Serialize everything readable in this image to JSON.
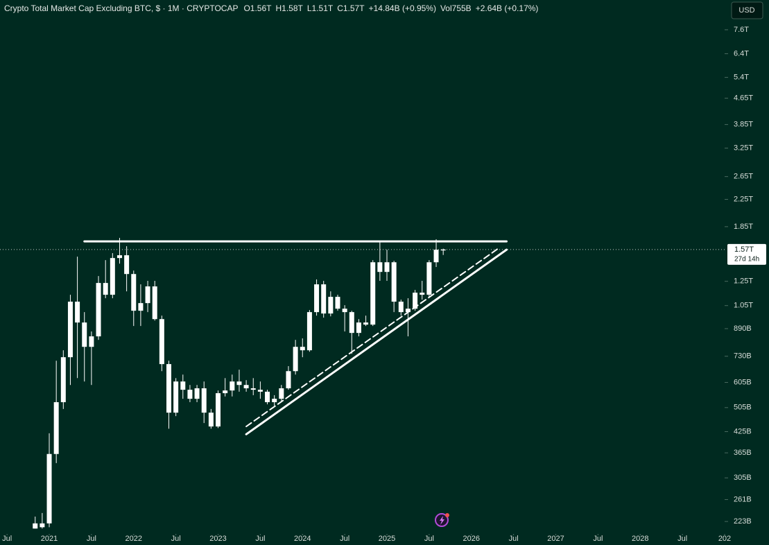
{
  "chart_data": {
    "type": "candlestick",
    "title": "Crypto Total Market Cap Excluding BTC, $ · 1M · CRYPTOCAP",
    "legend_values": [
      "O1.56T",
      "H1.58T",
      "L1.51T",
      "C1.57T",
      "+14.84B (+0.95%)",
      "Vol755B",
      "+2.64B (+0.17%)"
    ],
    "currency": "USD",
    "color": "#ffffff",
    "log": true,
    "x": [
      "2020-11",
      "2020-12",
      "2021-01",
      "2021-02",
      "2021-03",
      "2021-04",
      "2021-05",
      "2021-06",
      "2021-07",
      "2021-08",
      "2021-09",
      "2021-10",
      "2021-11",
      "2021-12",
      "2022-01",
      "2022-02",
      "2022-03",
      "2022-04",
      "2022-05",
      "2022-06",
      "2022-07",
      "2022-08",
      "2022-09",
      "2022-10",
      "2022-11",
      "2022-12",
      "2023-01",
      "2023-02",
      "2023-03",
      "2023-04",
      "2023-05",
      "2023-06",
      "2023-07",
      "2023-08",
      "2023-09",
      "2023-10",
      "2023-11",
      "2023-12",
      "2024-01",
      "2024-02",
      "2024-03",
      "2024-04",
      "2024-05",
      "2024-06",
      "2024-07",
      "2024-08",
      "2024-09",
      "2024-10",
      "2024-11",
      "2024-12",
      "2025-01",
      "2025-02",
      "2025-03",
      "2025-04",
      "2025-05",
      "2025-06",
      "2025-07",
      "2025-08",
      "2025-09"
    ],
    "open": [
      212000000000.0,
      214000000000.0,
      220000000000.0,
      362000000000.0,
      525000000000.0,
      725000000000.0,
      1080000000000.0,
      930000000000.0,
      781000000000.0,
      842000000000.0,
      1235000000000.0,
      1135000000000.0,
      1477000000000.0,
      1507000000000.0,
      1317000000000.0,
      1012000000000.0,
      1069000000000.0,
      1205000000000.0,
      953000000000.0,
      690000000000.0,
      487000000000.0,
      609000000000.0,
      574000000000.0,
      538000000000.0,
      580000000000.0,
      487000000000.0,
      441000000000.0,
      560000000000.0,
      571000000000.0,
      609000000000.0,
      594000000000.0,
      580000000000.0,
      574000000000.0,
      566000000000.0,
      525000000000.0,
      538000000000.0,
      580000000000.0,
      656000000000.0,
      781000000000.0,
      762000000000.0,
      1002000000000.0,
      1223000000000.0,
      992000000000.0,
      1118000000000.0,
      1027000000000.0,
      1002000000000.0,
      863000000000.0,
      930000000000.0,
      916000000000.0,
      1433000000000.0,
      1337000000000.0,
      1433000000000.0,
      1080000000000.0,
      1002000000000.0,
      1027000000000.0,
      1152000000000.0,
      1135000000000.0,
      1433000000000.0,
      1560000000000.0
    ],
    "high": [
      231000000000.0,
      237000000000.0,
      420000000000.0,
      707000000000.0,
      762000000000.0,
      1135000000000.0,
      1492000000000.0,
      1002000000000.0,
      872000000000.0,
      1298000000000.0,
      1455000000000.0,
      1530000000000.0,
      1707000000000.0,
      1608000000000.0,
      1350000000000.0,
      1223000000000.0,
      1254000000000.0,
      1254000000000.0,
      977000000000.0,
      707000000000.0,
      624000000000.0,
      640000000000.0,
      594000000000.0,
      594000000000.0,
      609000000000.0,
      500000000000.0,
      571000000000.0,
      624000000000.0,
      640000000000.0,
      663000000000.0,
      615000000000.0,
      624000000000.0,
      609000000000.0,
      574000000000.0,
      552000000000.0,
      594000000000.0,
      680000000000.0,
      821000000000.0,
      830000000000.0,
      1017000000000.0,
      1267000000000.0,
      1254000000000.0,
      1163000000000.0,
      1135000000000.0,
      1053000000000.0,
      1012000000000.0,
      953000000000.0,
      977000000000.0,
      1455000000000.0,
      1665000000000.0,
      1568000000000.0,
      1448000000000.0,
      1096000000000.0,
      1107000000000.0,
      1175000000000.0,
      1254000000000.0,
      1455000000000.0,
      1690000000000.0,
      1580000000000.0
    ],
    "low": [
      212000000000.0,
      212000000000.0,
      214000000000.0,
      339000000000.0,
      500000000000.0,
      594000000000.0,
      624000000000.0,
      609000000000.0,
      594000000000.0,
      821000000000.0,
      1107000000000.0,
      1107000000000.0,
      1419000000000.0,
      1163000000000.0,
      907000000000.0,
      907000000000.0,
      1002000000000.0,
      943000000000.0,
      656000000000.0,
      434000000000.0,
      475000000000.0,
      538000000000.0,
      525000000000.0,
      525000000000.0,
      452000000000.0,
      434000000000.0,
      436000000000.0,
      547000000000.0,
      547000000000.0,
      566000000000.0,
      566000000000.0,
      552000000000.0,
      538000000000.0,
      517000000000.0,
      512000000000.0,
      530000000000.0,
      574000000000.0,
      640000000000.0,
      725000000000.0,
      754000000000.0,
      977000000000.0,
      963000000000.0,
      972000000000.0,
      1012000000000.0,
      872000000000.0,
      743000000000.0,
      842000000000.0,
      907000000000.0,
      907000000000.0,
      1254000000000.0,
      1254000000000.0,
      1002000000000.0,
      977000000000.0,
      842000000000.0,
      1012000000000.0,
      1096000000000.0,
      1118000000000.0,
      1385000000000.0,
      1510000000000.0
    ],
    "close": [
      220000000000.0,
      220000000000.0,
      362000000000.0,
      525000000000.0,
      725000000000.0,
      1080000000000.0,
      930000000000.0,
      781000000000.0,
      842000000000.0,
      1235000000000.0,
      1135000000000.0,
      1477000000000.0,
      1507000000000.0,
      1317000000000.0,
      1012000000000.0,
      1069000000000.0,
      1205000000000.0,
      953000000000.0,
      690000000000.0,
      487000000000.0,
      609000000000.0,
      574000000000.0,
      538000000000.0,
      580000000000.0,
      487000000000.0,
      441000000000.0,
      560000000000.0,
      571000000000.0,
      609000000000.0,
      594000000000.0,
      580000000000.0,
      574000000000.0,
      566000000000.0,
      525000000000.0,
      538000000000.0,
      580000000000.0,
      656000000000.0,
      781000000000.0,
      762000000000.0,
      1002000000000.0,
      1223000000000.0,
      992000000000.0,
      1118000000000.0,
      1027000000000.0,
      1002000000000.0,
      863000000000.0,
      930000000000.0,
      916000000000.0,
      1433000000000.0,
      1337000000000.0,
      1433000000000.0,
      1080000000000.0,
      1002000000000.0,
      1027000000000.0,
      1152000000000.0,
      1135000000000.0,
      1433000000000.0,
      1568000000000.0,
      1570000000000.0
    ],
    "last_price": {
      "value": 1570000000000.0,
      "label": "1.57T"
    },
    "countdown": "27d 14h",
    "trendlines": [
      {
        "style": "solid",
        "x": [
          "2021-06",
          "2026-06"
        ],
        "y": [
          1665000000000.0,
          1665000000000.0
        ]
      },
      {
        "style": "solid",
        "x": [
          "2023-05",
          "2026-06"
        ],
        "y": [
          417000000000.0,
          1568000000000.0
        ]
      },
      {
        "style": "dashed",
        "x": [
          "2023-05",
          "2026-05"
        ],
        "y": [
          441000000000.0,
          1592000000000.0
        ]
      }
    ],
    "xlim": [
      "2020-06",
      "2029-01"
    ],
    "xticks": [
      {
        "value": "2020-07",
        "label": "Jul"
      },
      {
        "value": "2021-01",
        "label": "2021"
      },
      {
        "value": "2021-07",
        "label": "Jul"
      },
      {
        "value": "2022-01",
        "label": "2022"
      },
      {
        "value": "2022-07",
        "label": "Jul"
      },
      {
        "value": "2023-01",
        "label": "2023"
      },
      {
        "value": "2023-07",
        "label": "Jul"
      },
      {
        "value": "2024-01",
        "label": "2024"
      },
      {
        "value": "2024-07",
        "label": "Jul"
      },
      {
        "value": "2025-01",
        "label": "2025"
      },
      {
        "value": "2025-07",
        "label": "Jul"
      },
      {
        "value": "2026-01",
        "label": "2026"
      },
      {
        "value": "2026-07",
        "label": "Jul"
      },
      {
        "value": "2027-01",
        "label": "2027"
      },
      {
        "value": "2027-07",
        "label": "Jul"
      },
      {
        "value": "2028-01",
        "label": "2028"
      },
      {
        "value": "2028-07",
        "label": "Jul"
      },
      {
        "value": "2029-01",
        "label": "202"
      }
    ],
    "ylim": [
      204000000000.0,
      9410000000000.0
    ],
    "yticks": [
      {
        "value": 7600000000000.0,
        "label": "7.6T"
      },
      {
        "value": 6400000000000.0,
        "label": "6.4T"
      },
      {
        "value": 5400000000000.0,
        "label": "5.4T"
      },
      {
        "value": 4650000000000.0,
        "label": "4.65T"
      },
      {
        "value": 3850000000000.0,
        "label": "3.85T"
      },
      {
        "value": 3250000000000.0,
        "label": "3.25T"
      },
      {
        "value": 2650000000000.0,
        "label": "2.65T"
      },
      {
        "value": 2250000000000.0,
        "label": "2.25T"
      },
      {
        "value": 1850000000000.0,
        "label": "1.85T"
      },
      {
        "value": 1250000000000.0,
        "label": "1.25T"
      },
      {
        "value": 1050000000000.0,
        "label": "1.05T"
      },
      {
        "value": 890000000000.0,
        "label": "890B"
      },
      {
        "value": 730000000000.0,
        "label": "730B"
      },
      {
        "value": 605000000000.0,
        "label": "605B"
      },
      {
        "value": 505000000000.0,
        "label": "505B"
      },
      {
        "value": 425000000000.0,
        "label": "425B"
      },
      {
        "value": 365000000000.0,
        "label": "365B"
      },
      {
        "value": 305000000000.0,
        "label": "305B"
      },
      {
        "value": 261000000000.0,
        "label": "261B"
      },
      {
        "value": 223000000000.0,
        "label": "223B"
      }
    ],
    "grid": false
  }
}
